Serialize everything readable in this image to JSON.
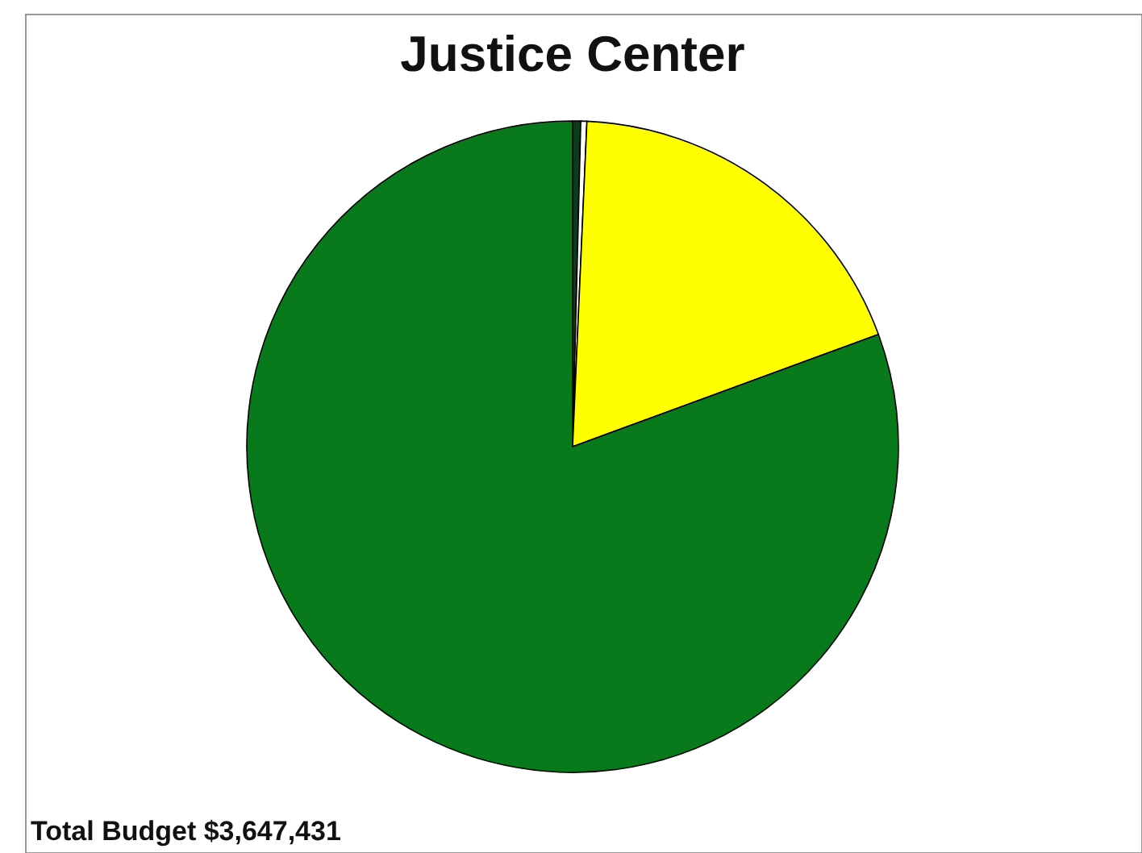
{
  "chart_data": {
    "type": "pie",
    "title": "Justice Center",
    "categories": [
      null,
      null,
      null,
      null
    ],
    "values": [
      0.4,
      0.3,
      18.7,
      80.6
    ],
    "colors": [
      "#0a3d1a",
      "#ffffff",
      "#ffff00",
      "#087a1c"
    ],
    "annotations": [
      "Total Budget  $3,647,431"
    ]
  }
}
